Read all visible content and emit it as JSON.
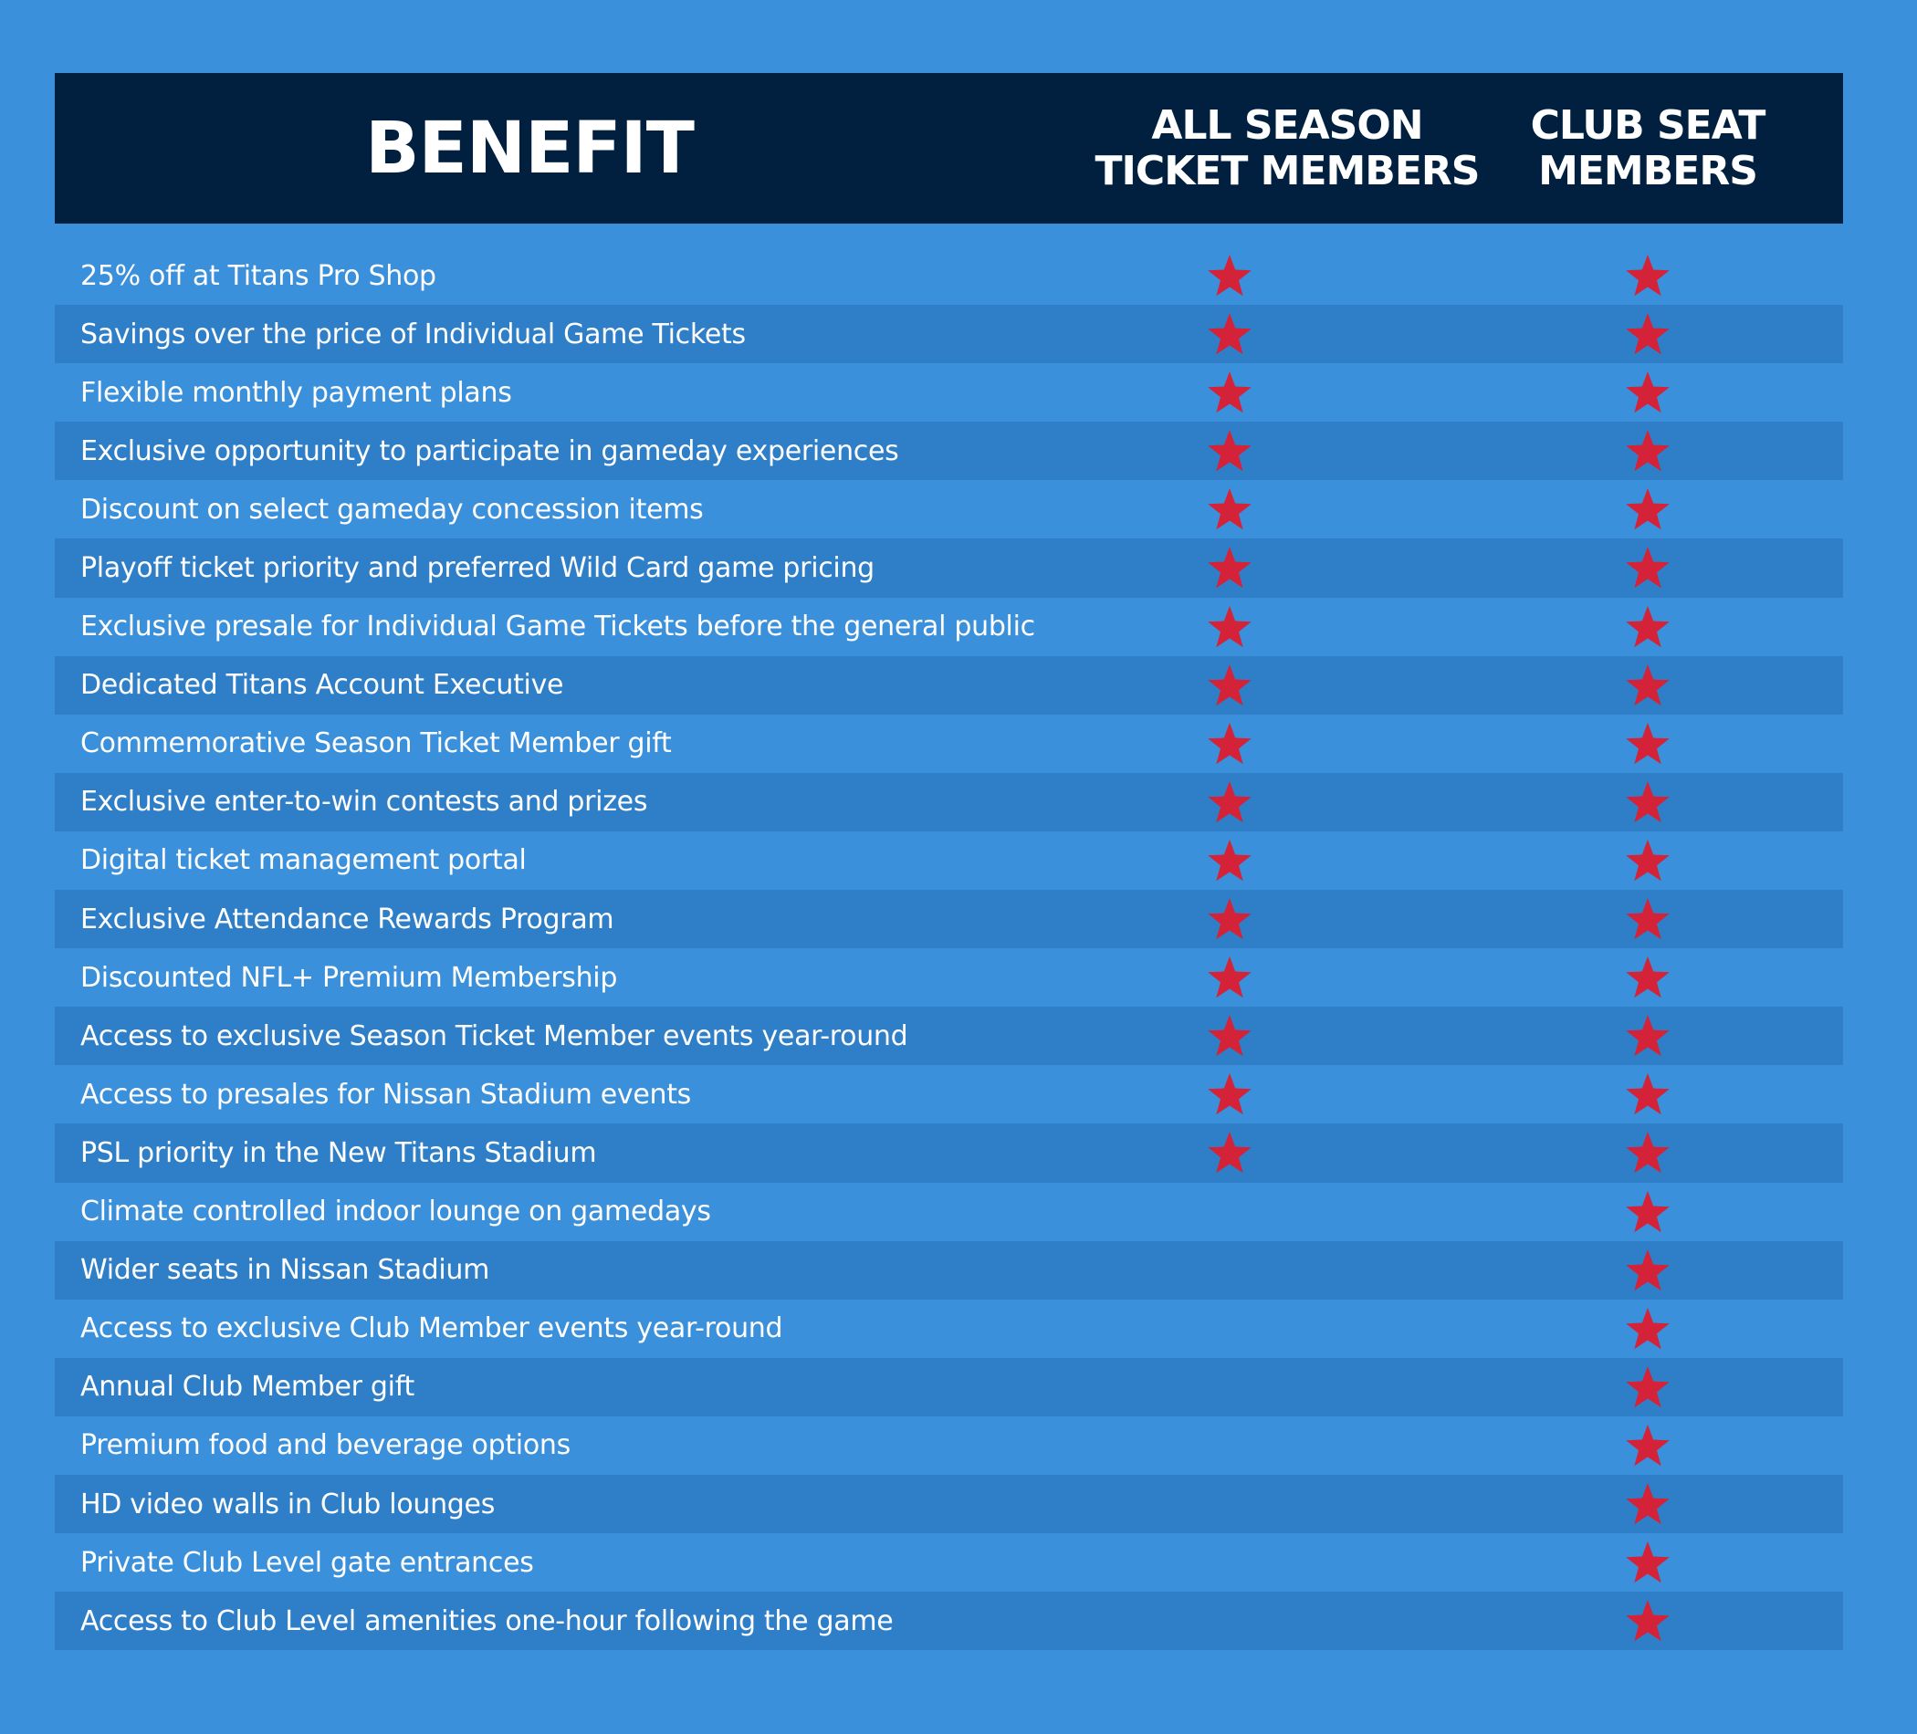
{
  "header": {
    "benefit": "BENEFIT",
    "season": "ALL SEASON\nTICKET MEMBERS",
    "club": "CLUB SEAT\nMEMBERS"
  },
  "table": {
    "rows": [
      {
        "benefit": "25% off at Titans Pro Shop",
        "season": true,
        "club": true
      },
      {
        "benefit": "Savings over the price of Individual Game Tickets",
        "season": true,
        "club": true
      },
      {
        "benefit": "Flexible monthly payment plans",
        "season": true,
        "club": true
      },
      {
        "benefit": "Exclusive opportunity to participate in gameday experiences",
        "season": true,
        "club": true
      },
      {
        "benefit": "Discount on select gameday concession items",
        "season": true,
        "club": true
      },
      {
        "benefit": "Playoff ticket priority and preferred Wild Card game pricing",
        "season": true,
        "club": true
      },
      {
        "benefit": "Exclusive presale for Individual Game Tickets before the general public",
        "season": true,
        "club": true
      },
      {
        "benefit": "Dedicated Titans Account Executive",
        "season": true,
        "club": true
      },
      {
        "benefit": "Commemorative Season Ticket Member gift",
        "season": true,
        "club": true
      },
      {
        "benefit": "Exclusive enter-to-win contests and prizes",
        "season": true,
        "club": true
      },
      {
        "benefit": "Digital ticket management portal",
        "season": true,
        "club": true
      },
      {
        "benefit": "Exclusive Attendance Rewards Program",
        "season": true,
        "club": true
      },
      {
        "benefit": "Discounted NFL+ Premium Membership",
        "season": true,
        "club": true
      },
      {
        "benefit": "Access to exclusive Season Ticket Member events year-round",
        "season": true,
        "club": true
      },
      {
        "benefit": "Access to presales for Nissan Stadium events",
        "season": true,
        "club": true
      },
      {
        "benefit": "PSL priority in the New Titans Stadium",
        "season": true,
        "club": true
      },
      {
        "benefit": "Climate controlled indoor lounge on gamedays",
        "season": false,
        "club": true
      },
      {
        "benefit": "Wider seats in Nissan Stadium",
        "season": false,
        "club": true
      },
      {
        "benefit": "Access to exclusive Club Member events year-round",
        "season": false,
        "club": true
      },
      {
        "benefit": "Annual Club Member gift",
        "season": false,
        "club": true
      },
      {
        "benefit": "Premium food and beverage options",
        "season": false,
        "club": true
      },
      {
        "benefit": "HD video walls in Club lounges",
        "season": false,
        "club": true
      },
      {
        "benefit": "Private Club Level gate entrances",
        "season": false,
        "club": true
      },
      {
        "benefit": "Access to Club Level amenities one-hour following the game",
        "season": false,
        "club": true
      }
    ]
  }
}
